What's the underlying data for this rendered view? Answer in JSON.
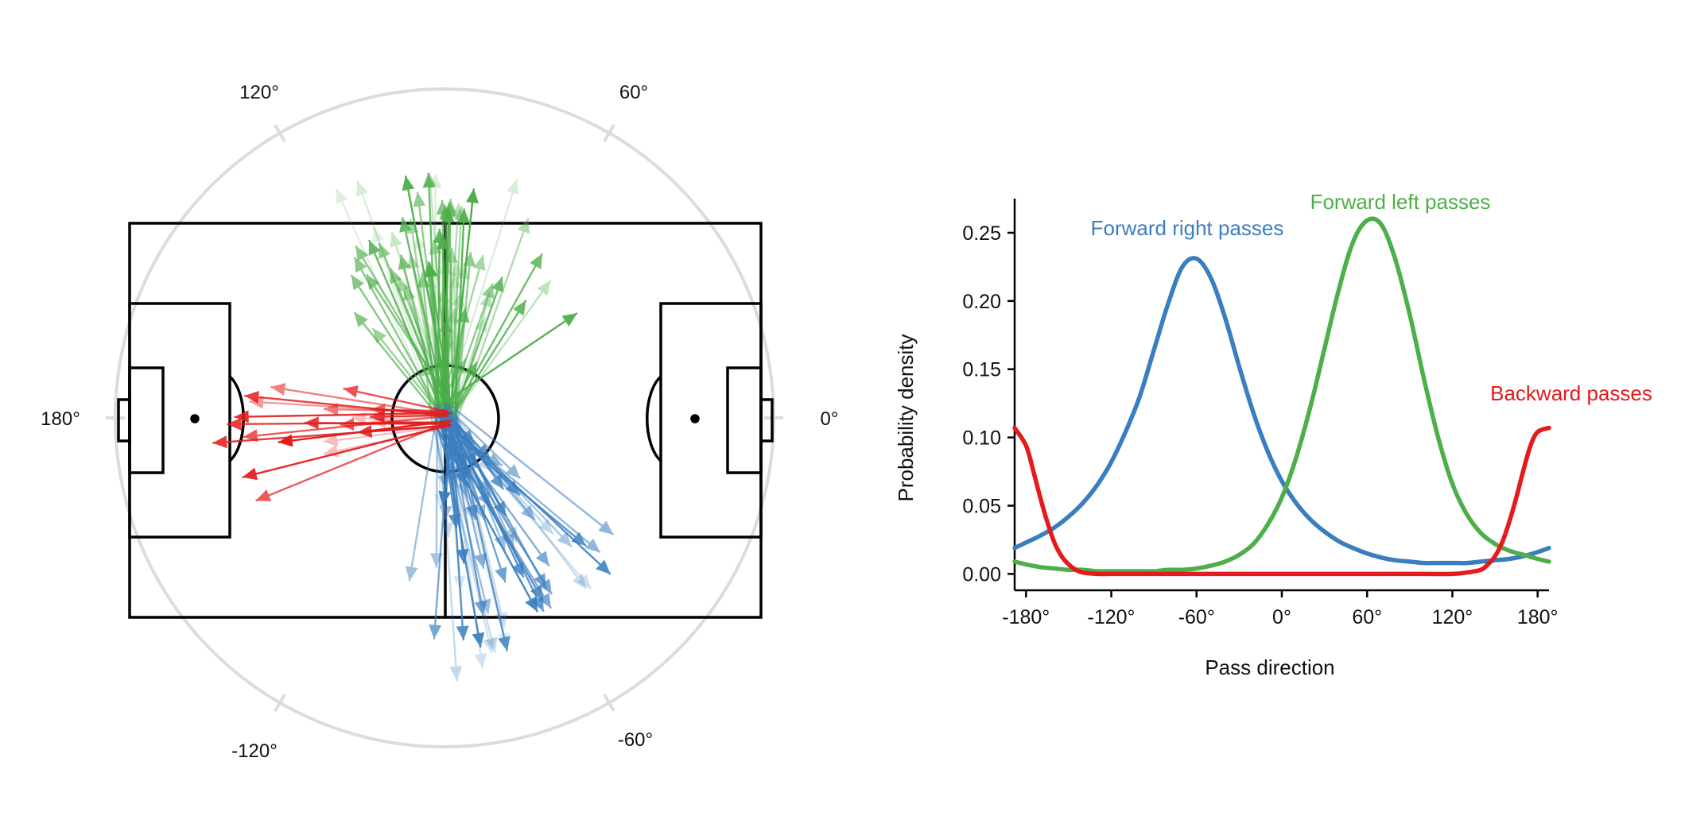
{
  "colors": {
    "forward_right": "#3a7ebf",
    "forward_left": "#4daf4a",
    "backward": "#e41a1c",
    "pitch_lines": "#000000",
    "compass_ring": "#dcdcdc"
  },
  "compass": {
    "labels": [
      "120°",
      "60°",
      "180°",
      "0°",
      "-120°",
      "-60°"
    ]
  },
  "chart_data": {
    "type": "line",
    "xlabel": "Pass direction",
    "ylabel": "Probability density",
    "xlim": [
      -188,
      188
    ],
    "ylim": [
      -0.012,
      0.275
    ],
    "x_ticks": [
      -180,
      -120,
      -60,
      0,
      60,
      120,
      180
    ],
    "x_tick_labels": [
      "-180°",
      "-120°",
      "-60°",
      "0°",
      "60°",
      "120°",
      "180°"
    ],
    "y_ticks": [
      0.0,
      0.05,
      0.1,
      0.15,
      0.2,
      0.25
    ],
    "y_tick_labels": [
      "0.00",
      "0.05",
      "0.10",
      "0.15",
      "0.20",
      "0.25"
    ],
    "grid": false,
    "series": [
      {
        "name": "Forward right passes",
        "color": "#3a7ebf",
        "x": [
          -188,
          -180,
          -170,
          -160,
          -150,
          -140,
          -130,
          -120,
          -110,
          -100,
          -90,
          -80,
          -70,
          -60,
          -50,
          -40,
          -30,
          -20,
          -10,
          0,
          10,
          20,
          30,
          40,
          50,
          60,
          70,
          80,
          90,
          100,
          110,
          120,
          130,
          140,
          150,
          160,
          170,
          180,
          188
        ],
        "y": [
          0.019,
          0.023,
          0.028,
          0.034,
          0.042,
          0.052,
          0.065,
          0.082,
          0.104,
          0.13,
          0.164,
          0.198,
          0.225,
          0.231,
          0.217,
          0.188,
          0.152,
          0.118,
          0.09,
          0.068,
          0.052,
          0.04,
          0.031,
          0.024,
          0.019,
          0.015,
          0.012,
          0.01,
          0.009,
          0.008,
          0.008,
          0.008,
          0.008,
          0.009,
          0.01,
          0.011,
          0.013,
          0.016,
          0.019
        ]
      },
      {
        "name": "Forward left passes",
        "color": "#4daf4a",
        "x": [
          -188,
          -180,
          -170,
          -160,
          -150,
          -140,
          -130,
          -120,
          -110,
          -100,
          -90,
          -80,
          -70,
          -60,
          -50,
          -40,
          -30,
          -20,
          -10,
          0,
          10,
          20,
          30,
          40,
          50,
          60,
          70,
          80,
          90,
          100,
          110,
          120,
          130,
          140,
          150,
          160,
          170,
          180,
          188
        ],
        "y": [
          0.009,
          0.007,
          0.005,
          0.004,
          0.003,
          0.003,
          0.002,
          0.002,
          0.002,
          0.002,
          0.002,
          0.003,
          0.003,
          0.004,
          0.006,
          0.009,
          0.014,
          0.022,
          0.036,
          0.056,
          0.085,
          0.122,
          0.165,
          0.208,
          0.243,
          0.259,
          0.256,
          0.23,
          0.19,
          0.143,
          0.1,
          0.066,
          0.044,
          0.03,
          0.022,
          0.017,
          0.014,
          0.011,
          0.009
        ]
      },
      {
        "name": "Backward passes",
        "color": "#e41a1c",
        "x": [
          -188,
          -180,
          -175,
          -170,
          -165,
          -160,
          -155,
          -150,
          -145,
          -140,
          -130,
          -120,
          -100,
          -60,
          0,
          60,
          100,
          120,
          130,
          140,
          145,
          150,
          155,
          160,
          165,
          170,
          175,
          180,
          188
        ],
        "y": [
          0.107,
          0.094,
          0.076,
          0.056,
          0.038,
          0.023,
          0.013,
          0.007,
          0.003,
          0.001,
          0.0,
          0.0,
          0.0,
          0.0,
          0.0,
          0.0,
          0.0,
          0.0,
          0.001,
          0.003,
          0.007,
          0.013,
          0.023,
          0.038,
          0.056,
          0.076,
          0.094,
          0.104,
          0.107
        ]
      }
    ]
  }
}
